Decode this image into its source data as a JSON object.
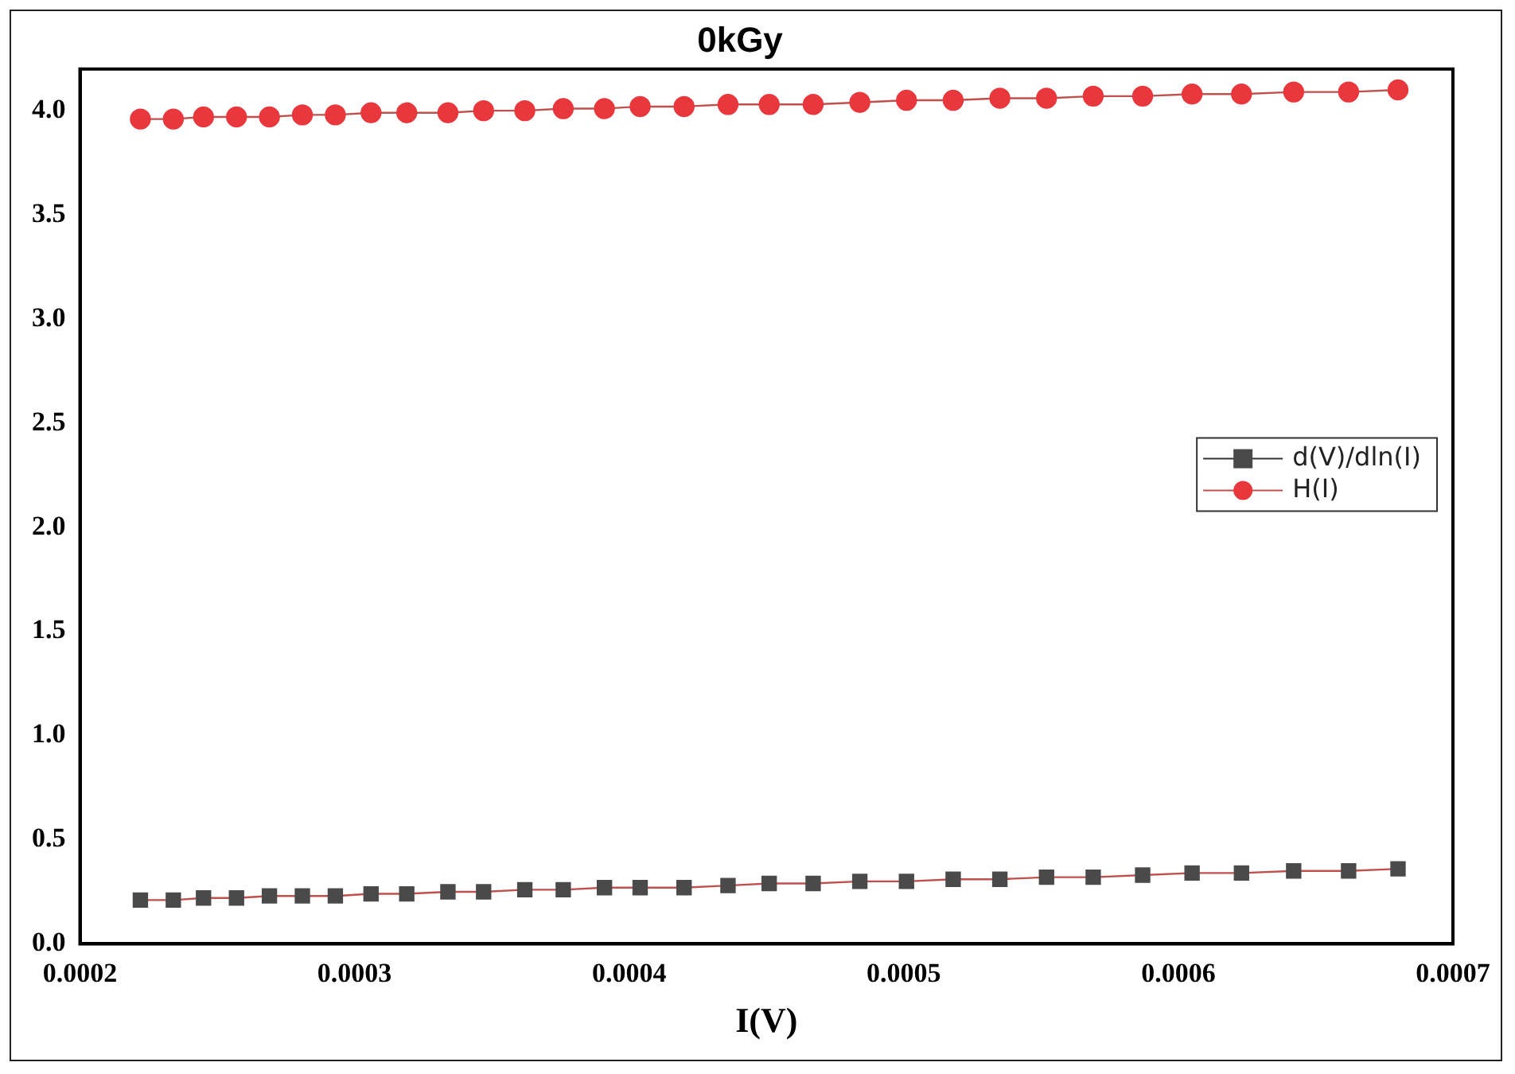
{
  "chart_data": {
    "type": "line",
    "title": "0kGy",
    "xlabel": "I(V)",
    "x": [
      0.000222,
      0.000234,
      0.000245,
      0.000257,
      0.000269,
      0.000281,
      0.000293,
      0.000306,
      0.000319,
      0.000334,
      0.000347,
      0.000362,
      0.000376,
      0.000391,
      0.000404,
      0.00042,
      0.000436,
      0.000451,
      0.000467,
      0.000484,
      0.000501,
      0.000518,
      0.000535,
      0.000552,
      0.000569,
      0.000587,
      0.000605,
      0.000623,
      0.000642,
      0.000662,
      0.00068
    ],
    "series": [
      {
        "name": "d(V)/dln(I)",
        "color": "#4a4a4a",
        "marker": "square",
        "values": [
          0.21,
          0.21,
          0.22,
          0.22,
          0.23,
          0.23,
          0.23,
          0.24,
          0.24,
          0.25,
          0.25,
          0.26,
          0.26,
          0.27,
          0.27,
          0.27,
          0.28,
          0.29,
          0.29,
          0.3,
          0.3,
          0.31,
          0.31,
          0.32,
          0.32,
          0.33,
          0.34,
          0.34,
          0.35,
          0.35,
          0.36
        ]
      },
      {
        "name": "H(I)",
        "color": "#e8383d",
        "marker": "circle",
        "values": [
          3.96,
          3.96,
          3.97,
          3.97,
          3.97,
          3.98,
          3.98,
          3.99,
          3.99,
          3.99,
          4.0,
          4.0,
          4.01,
          4.01,
          4.02,
          4.02,
          4.03,
          4.03,
          4.03,
          4.04,
          4.05,
          4.05,
          4.06,
          4.06,
          4.07,
          4.07,
          4.08,
          4.08,
          4.09,
          4.09,
          4.1
        ]
      }
    ],
    "xlim": [
      0.0002,
      0.0007
    ],
    "xticks": [
      0.0002,
      0.0003,
      0.0004,
      0.0005,
      0.0006,
      0.0007
    ],
    "ylim": [
      0,
      4.2
    ],
    "yticks": [
      {
        "value": 0,
        "label": "0.0"
      },
      0.5,
      {
        "value": 1,
        "label": "1.0"
      },
      1.5,
      {
        "value": 2,
        "label": "2.0"
      },
      2.5,
      {
        "value": 3,
        "label": "3.0"
      },
      3.5,
      {
        "value": 4,
        "label": "4.0"
      }
    ],
    "legend": "right",
    "line_style": "solid"
  }
}
